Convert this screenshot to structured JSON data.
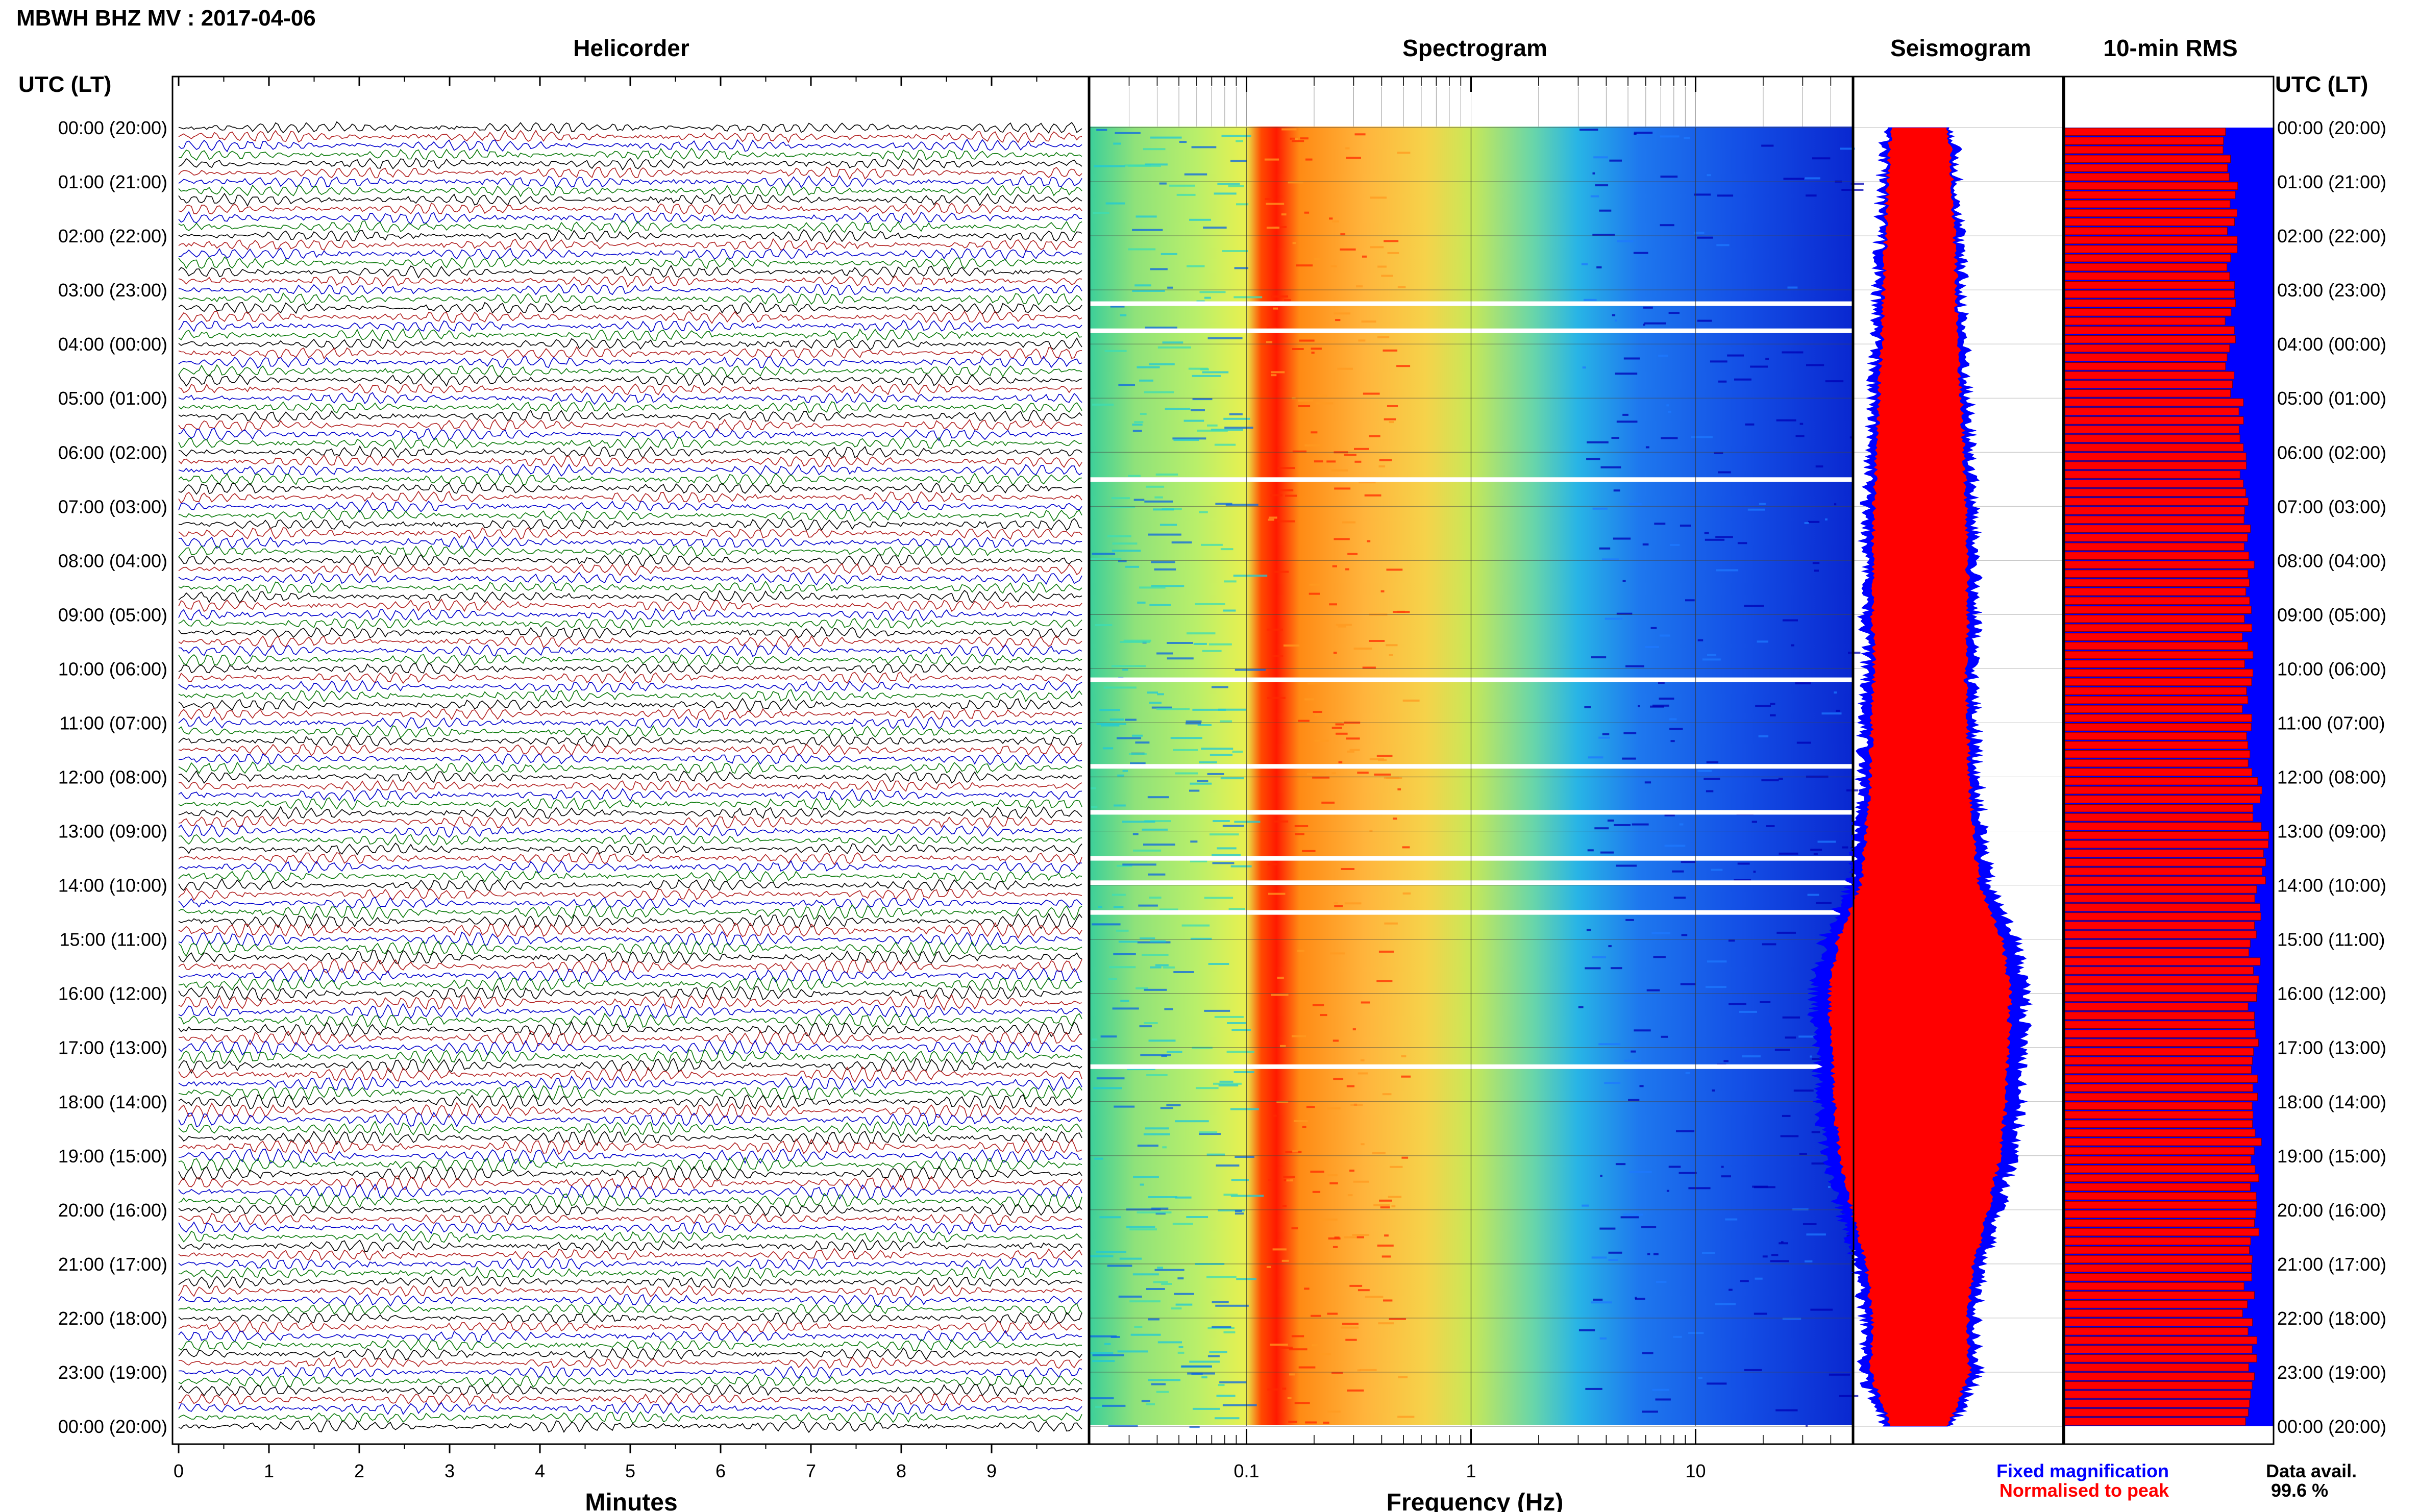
{
  "header": {
    "title": "MBWH BHZ MV : 2017-04-06",
    "utc_label_left": "UTC (LT)",
    "utc_label_right": "UTC (LT)"
  },
  "panels": {
    "helicorder": "Helicorder",
    "spectrogram": "Spectrogram",
    "seismogram": "Seismogram",
    "rms": "10-min RMS"
  },
  "axes": {
    "minutes_label": "Minutes",
    "frequency_label": "Frequency (Hz)"
  },
  "legend": {
    "fixed": "Fixed magnification",
    "normalised": "Normalised to peak",
    "data_avail_label": "Data avail.",
    "data_avail_value": "99.6 %"
  },
  "colors": {
    "trace_cycle": [
      "#000000",
      "#b22222",
      "#0000cc",
      "#0a7a0a"
    ],
    "fixed": "#0000ff",
    "normalised": "#ff0000",
    "spectrogram_scale": [
      "#0000b4",
      "#1e64ff",
      "#00c8ff",
      "#3cdcb4",
      "#c8f050",
      "#f0d23c",
      "#ff7800",
      "#ff0000"
    ]
  },
  "chart_data": [
    {
      "type": "line",
      "panel": "helicorder",
      "xlabel": "Minutes",
      "x_ticks": [
        "0",
        "1",
        "2",
        "3",
        "4",
        "5",
        "6",
        "7",
        "8",
        "9"
      ],
      "xlim": [
        0,
        10
      ],
      "y_tick_labels": [
        "00:00 (20:00)",
        "01:00 (21:00)",
        "02:00 (22:00)",
        "03:00 (23:00)",
        "04:00 (00:00)",
        "05:00 (01:00)",
        "06:00 (02:00)",
        "07:00 (03:00)",
        "08:00 (04:00)",
        "09:00 (05:00)",
        "10:00 (06:00)",
        "11:00 (07:00)",
        "12:00 (08:00)",
        "13:00 (09:00)",
        "14:00 (10:00)",
        "15:00 (11:00)",
        "16:00 (12:00)",
        "17:00 (13:00)",
        "18:00 (14:00)",
        "19:00 (15:00)",
        "20:00 (16:00)",
        "21:00 (17:00)",
        "22:00 (18:00)",
        "23:00 (19:00)",
        "00:00 (20:00)"
      ],
      "lines_per_hour": 6,
      "line_count": 144
    },
    {
      "type": "heatmap",
      "panel": "spectrogram",
      "xlabel": "Frequency (Hz)",
      "x_scale": "log",
      "x_tick_labels": [
        "0.1",
        "1",
        "10"
      ],
      "xlim": [
        0.02,
        50
      ],
      "y_hours": [
        0,
        24
      ],
      "data_gaps_utc_hours": [
        3.25,
        3.75,
        6.5,
        10.2,
        11.8,
        12.65,
        13.5,
        13.95,
        14.5,
        17.35
      ],
      "dominant_band_hz": [
        0.13,
        0.15
      ],
      "energy_falloff_hz": 2.5
    },
    {
      "type": "area",
      "panel": "seismogram",
      "series": [
        {
          "name": "Fixed magnification",
          "hours": [
            0,
            1,
            2,
            3,
            4,
            5,
            6,
            7,
            8,
            9,
            10,
            11,
            12,
            13,
            14,
            15,
            16,
            17,
            18,
            19,
            20,
            21,
            22,
            23,
            24
          ],
          "half_width": [
            0.3,
            0.34,
            0.36,
            0.38,
            0.4,
            0.43,
            0.46,
            0.48,
            0.5,
            0.5,
            0.48,
            0.5,
            0.52,
            0.56,
            0.62,
            0.86,
            0.95,
            0.93,
            0.9,
            0.84,
            0.72,
            0.56,
            0.5,
            0.52,
            0.3
          ]
        }
      ],
      "normalised_to_peak_ratio": 0.85
    },
    {
      "type": "bar",
      "panel": "rms",
      "orientation": "horizontal",
      "interval_minutes": 10,
      "hours": [
        0,
        1,
        2,
        3,
        4,
        5,
        6,
        7,
        8,
        9,
        10,
        11,
        12,
        13,
        14,
        15,
        16,
        17,
        18,
        19,
        20,
        21,
        22,
        23
      ],
      "values": [
        0.78,
        0.8,
        0.8,
        0.79,
        0.8,
        0.84,
        0.86,
        0.87,
        0.88,
        0.88,
        0.88,
        0.9,
        0.93,
        0.95,
        0.92,
        0.91,
        0.9,
        0.92,
        0.92,
        0.9,
        0.9,
        0.88,
        0.9,
        0.88
      ],
      "xlim": [
        0,
        1
      ]
    }
  ]
}
